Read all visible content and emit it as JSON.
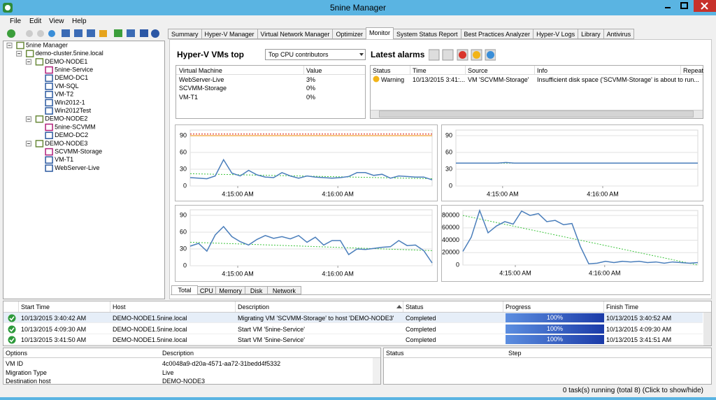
{
  "window": {
    "title": "5nine Manager"
  },
  "menu": [
    "File",
    "Edit",
    "View",
    "Help"
  ],
  "tree": {
    "label": "5nine Manager",
    "children": [
      {
        "label": "demo-cluster.5nine.local",
        "children": [
          {
            "label": "DEMO-NODE1",
            "children": [
              {
                "label": "5nine-Service"
              },
              {
                "label": "DEMO-DC1"
              },
              {
                "label": "VM-SQL"
              },
              {
                "label": "VM-T2"
              },
              {
                "label": "Win2012-1"
              },
              {
                "label": "Win2012Test"
              }
            ]
          },
          {
            "label": "DEMO-NODE2",
            "children": [
              {
                "label": "5nine-SCVMM"
              },
              {
                "label": "DEMO-DC2"
              }
            ]
          },
          {
            "label": "DEMO-NODE3",
            "children": [
              {
                "label": "SCVMM-Storage"
              },
              {
                "label": "VM-T1"
              },
              {
                "label": "WebServer-Live"
              }
            ]
          }
        ]
      }
    ]
  },
  "tabs": {
    "items": [
      "Summary",
      "Hyper-V Manager",
      "Virtual Network Manager",
      "Optimizer",
      "Monitor",
      "System Status Report",
      "Best Practices Analyzer",
      "Hyper-V Logs",
      "Library",
      "Antivirus"
    ],
    "active": 4
  },
  "monitor": {
    "vms_title": "Hyper-V VMs top",
    "selector": "Top CPU contributors",
    "alarms_title": "Latest alarms",
    "vm_table": {
      "columns": [
        "Virtual Machine",
        "Value"
      ],
      "rows": [
        [
          "WebServer-Live",
          "3%"
        ],
        [
          "SCVMM-Storage",
          "0%"
        ],
        [
          "VM-T1",
          "0%"
        ]
      ]
    },
    "alarm_table": {
      "columns": [
        "Status",
        "Time",
        "Source",
        "Info",
        "Repeat"
      ],
      "rows": [
        [
          "Warning",
          "10/13/2015 3:41:...",
          "VM 'SCVMM-Storage'",
          "Insufficient disk space ('SCVMM-Storage' is about to run..."
        ]
      ]
    },
    "charts": [
      {
        "type": "line",
        "ylim": [
          0,
          100
        ],
        "yticks": [
          0,
          30,
          60,
          90
        ],
        "xlim": [
          0,
          29
        ],
        "xticks": [
          {
            "value": 5.7,
            "label": "4:15:00 AM"
          },
          {
            "value": 17.7,
            "label": "4:16:00 AM"
          }
        ],
        "series": [
          {
            "color": "#4a7ebb",
            "values": [
              15,
              14,
              13,
              18,
              47,
              23,
              18,
              28,
              20,
              16,
              15,
              24,
              18,
              14,
              18,
              16,
              15,
              14,
              15,
              17,
              24,
              24,
              19,
              21,
              14,
              18,
              17,
              16,
              16,
              11
            ]
          }
        ],
        "trend": {
          "color": "#3cc43c",
          "values": [
            22,
            13
          ]
        },
        "thresholds": [
          {
            "color": "#e03c31",
            "value": 93
          },
          {
            "color": "#f0a030",
            "value": 90
          }
        ]
      },
      {
        "type": "line",
        "ylim": [
          0,
          100
        ],
        "yticks": [
          0,
          30,
          60,
          90
        ],
        "xlim": [
          0,
          29
        ],
        "xticks": [
          {
            "value": 5.6,
            "label": "4:15:00 AM"
          },
          {
            "value": 17.6,
            "label": "4:16:00 AM"
          }
        ],
        "series": [
          {
            "color": "#4a7ebb",
            "values": [
              41,
              41,
              41,
              41,
              41,
              41,
              42,
              41,
              41,
              41,
              41,
              41,
              41,
              41,
              41,
              41,
              41,
              41,
              41,
              41,
              41,
              41,
              41,
              41,
              41,
              41,
              41,
              41,
              41,
              41
            ]
          }
        ],
        "trend": {
          "color": "#3cc43c",
          "values": [
            41,
            41
          ]
        }
      },
      {
        "type": "line",
        "ylim": [
          0,
          100
        ],
        "yticks": [
          0,
          30,
          60,
          90
        ],
        "xlim": [
          0,
          29
        ],
        "xticks": [
          {
            "value": 5.7,
            "label": "4:15:00 AM"
          },
          {
            "value": 17.7,
            "label": "4:16:00 AM"
          }
        ],
        "series": [
          {
            "color": "#4a7ebb",
            "values": [
              35,
              40,
              26,
              55,
              70,
              52,
              43,
              37,
              47,
              54,
              49,
              52,
              48,
              54,
              42,
              51,
              37,
              45,
              45,
              20,
              30,
              29,
              31,
              33,
              34,
              45,
              36,
              37,
              27,
              5
            ]
          }
        ],
        "trend": {
          "color": "#3cc43c",
          "values": [
            42,
            27
          ]
        }
      },
      {
        "type": "line",
        "ylim": [
          0,
          88000
        ],
        "yticks": [
          0,
          20000,
          40000,
          60000,
          80000
        ],
        "xlim": [
          0,
          28
        ],
        "xticks": [
          {
            "value": 6.25,
            "label": "4:15:00 AM"
          },
          {
            "value": 16.9,
            "label": "4:16:00 AM"
          }
        ],
        "series": [
          {
            "color": "#4a7ebb",
            "values": [
              22000,
              45000,
              88000,
              52000,
              63000,
              70000,
              66000,
              87000,
              80000,
              83000,
              70000,
              72000,
              65000,
              67000,
              30000,
              2000,
              3000,
              6000,
              4000,
              6000,
              5000,
              6000,
              4000,
              5000,
              3000,
              5000,
              4000,
              3000,
              4000
            ]
          }
        ],
        "trend": {
          "color": "#3cc43c",
          "values": [
            80000,
            0
          ]
        }
      }
    ],
    "subtabs": {
      "items": [
        "Total",
        "CPU",
        "Memory",
        "Disk",
        "Network"
      ],
      "active": 0
    }
  },
  "tasks": {
    "columns": [
      "Start Time",
      "Host",
      "Description",
      "Status",
      "Progress",
      "Finish Time"
    ],
    "rows": [
      [
        "10/13/2015 3:40:42 AM",
        "DEMO-NODE1.5nine.local",
        "Migrating VM 'SCVMM-Storage' to host 'DEMO-NODE3'",
        "Completed",
        "100%",
        "10/13/2015 3:40:52 AM"
      ],
      [
        "10/13/2015 4:09:30 AM",
        "DEMO-NODE1.5nine.local",
        "Start VM '5nine-Service'",
        "Completed",
        "100%",
        "10/13/2015 4:09:30 AM"
      ],
      [
        "10/13/2015 3:41:50 AM",
        "DEMO-NODE1.5nine.local",
        "Start VM '5nine-Service'",
        "Completed",
        "100%",
        "10/13/2015 3:41:51 AM"
      ]
    ]
  },
  "details": {
    "columns": [
      "Options",
      "Description"
    ],
    "rows": [
      [
        "VM ID",
        "4c0048a9-d20a-4571-aa72-31bedd4f5332"
      ],
      [
        "Migration Type",
        "Live"
      ],
      [
        "Destination host",
        "DEMO-NODE3"
      ]
    ]
  },
  "steps": {
    "columns": [
      "Status",
      "Step"
    ]
  },
  "status_bar": "0 task(s) running (total 8) (Click to show/hide)"
}
